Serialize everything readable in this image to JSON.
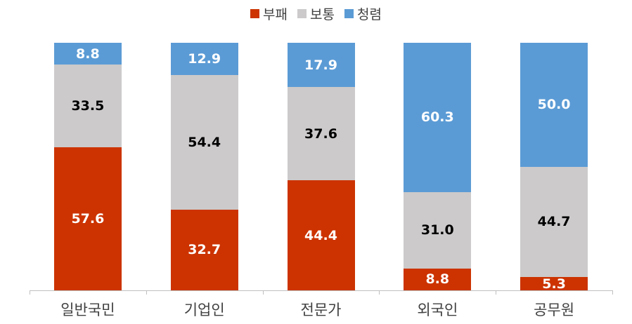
{
  "chart_data": {
    "type": "bar",
    "stacked": true,
    "percent_stacked": true,
    "title": "",
    "xlabel": "",
    "ylabel": "",
    "ylim": [
      0,
      100
    ],
    "grid": false,
    "legend_position": "top",
    "categories": [
      "일반국민",
      "기업인",
      "전문가",
      "외국인",
      "공무원"
    ],
    "series": [
      {
        "name": "부패",
        "color": "#cc3300",
        "label_color": "#ffffff",
        "values": [
          57.6,
          32.7,
          44.4,
          8.8,
          5.3
        ]
      },
      {
        "name": "보통",
        "color": "#cccaca",
        "label_color": "#000000",
        "values": [
          33.5,
          54.4,
          37.6,
          31.0,
          44.7
        ]
      },
      {
        "name": "청렴",
        "color": "#5b9bd5",
        "label_color": "#ffffff",
        "values": [
          8.8,
          12.9,
          17.9,
          60.3,
          50.0
        ]
      }
    ]
  },
  "legend": [
    {
      "label": "부패",
      "color": "#cc3300"
    },
    {
      "label": "보통",
      "color": "#cccaca"
    },
    {
      "label": "청렴",
      "color": "#5b9bd5"
    }
  ]
}
